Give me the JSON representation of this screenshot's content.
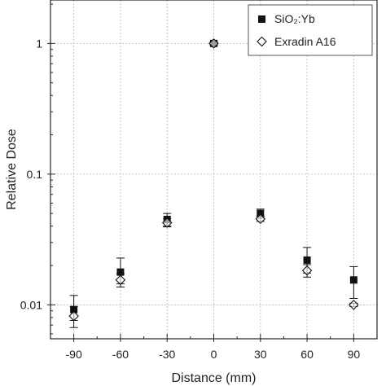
{
  "chart_data": {
    "type": "scatter",
    "title": "",
    "xlabel": "Distance (mm)",
    "ylabel": "Relative Dose",
    "x_scale": "linear",
    "y_scale": "log",
    "xlim": [
      -105,
      105
    ],
    "ylim": [
      0.0055,
      2.15
    ],
    "x_ticks": [
      -90,
      -60,
      -30,
      0,
      30,
      60,
      90
    ],
    "x_tick_labels": [
      "-90",
      "-60",
      "-30",
      "0",
      "30",
      "60",
      "90"
    ],
    "y_ticks": [
      0.01,
      0.1,
      1
    ],
    "y_tick_labels": [
      "0.01",
      "0.1",
      "1"
    ],
    "grid": true,
    "legend_position": "top-right",
    "series": [
      {
        "name": "SiO₂:Yb",
        "marker": "filled-square",
        "color": "#111111",
        "points": [
          {
            "x": -90,
            "y": 0.0092,
            "err_low": 0.0076,
            "err_high": 0.0118
          },
          {
            "x": -60,
            "y": 0.0178,
            "err_low": 0.0145,
            "err_high": 0.0228
          },
          {
            "x": -30,
            "y": 0.045,
            "err_low": 0.04,
            "err_high": 0.05
          },
          {
            "x": 0,
            "y": 1.0,
            "err_low": 0.97,
            "err_high": 1.03
          },
          {
            "x": 30,
            "y": 0.05,
            "err_low": 0.046,
            "err_high": 0.054
          },
          {
            "x": 60,
            "y": 0.022,
            "err_low": 0.0175,
            "err_high": 0.0275
          },
          {
            "x": 90,
            "y": 0.0155,
            "err_low": 0.0112,
            "err_high": 0.0196
          }
        ]
      },
      {
        "name": "Exradin A16",
        "marker": "open-diamond",
        "color": "#111111",
        "points": [
          {
            "x": -90,
            "y": 0.0082,
            "err_low": 0.0067,
            "err_high": 0.0097
          },
          {
            "x": -60,
            "y": 0.0155,
            "err_low": 0.0137,
            "err_high": 0.0173
          },
          {
            "x": -30,
            "y": 0.0425,
            "err_low": 0.0395,
            "err_high": 0.0455
          },
          {
            "x": 0,
            "y": 1.0,
            "err_low": 0.97,
            "err_high": 1.03
          },
          {
            "x": 30,
            "y": 0.0455,
            "err_low": 0.0435,
            "err_high": 0.0475
          },
          {
            "x": 60,
            "y": 0.0183,
            "err_low": 0.0163,
            "err_high": 0.0203
          },
          {
            "x": 90,
            "y": 0.01,
            "err_low": 0.0097,
            "err_high": 0.0103
          }
        ]
      }
    ]
  }
}
